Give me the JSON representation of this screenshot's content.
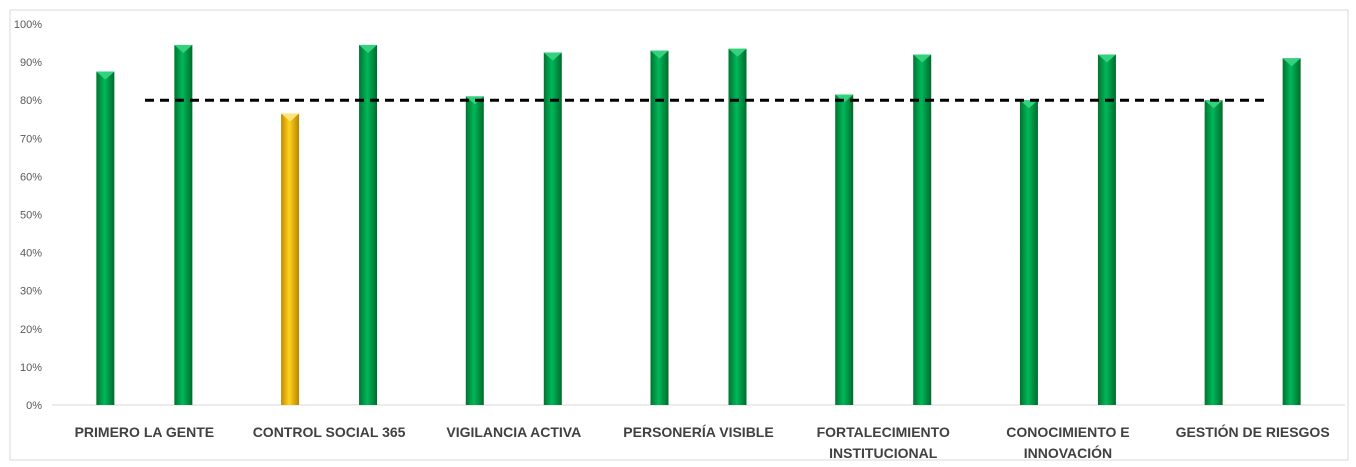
{
  "chart_data": {
    "type": "bar",
    "categories": [
      [
        "PRIMERO LA GENTE"
      ],
      [
        "CONTROL SOCIAL 365"
      ],
      [
        "VIGILANCIA ACTIVA"
      ],
      [
        "PERSONERÍA VISIBLE"
      ],
      [
        "FORTALECIMIENTO",
        "INSTITUCIONAL"
      ],
      [
        "CONOCIMIENTO E",
        "INNOVACIÓN"
      ],
      [
        "GESTIÓN DE RIESGOS"
      ]
    ],
    "series": [
      {
        "values": [
          87.5,
          76.5,
          81,
          93,
          81.5,
          80,
          80
        ]
      },
      {
        "values": [
          94.5,
          94.5,
          92.5,
          93.5,
          92,
          92,
          91
        ]
      }
    ],
    "bar_colors": [
      [
        "#00a651",
        "#00a651"
      ],
      [
        "#f5b800",
        "#00a651"
      ],
      [
        "#00a651",
        "#00a651"
      ],
      [
        "#00a651",
        "#00a651"
      ],
      [
        "#00a651",
        "#00a651"
      ],
      [
        "#00a651",
        "#00a651"
      ],
      [
        "#00a651",
        "#00a651"
      ]
    ],
    "target_line": 80,
    "y_ticks": [
      "0%",
      "10%",
      "20%",
      "30%",
      "40%",
      "50%",
      "60%",
      "70%",
      "80%",
      "90%",
      "100%"
    ],
    "ylim": [
      0,
      100
    ],
    "grid": false,
    "legend": "none",
    "title": "",
    "xlabel": "",
    "ylabel": ""
  }
}
